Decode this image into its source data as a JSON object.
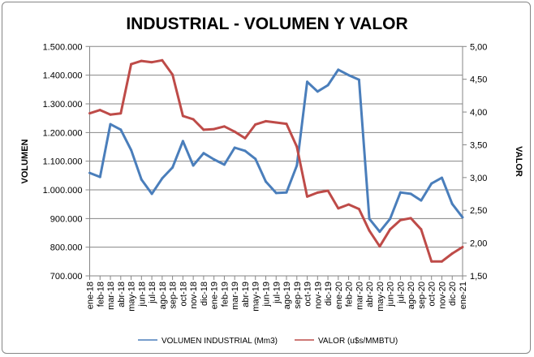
{
  "chart_data": {
    "type": "line",
    "title": "INDUSTRIAL - VOLUMEN Y VALOR",
    "ylabel_left": "VOLUMEN",
    "ylabel_right": "VALOR",
    "ylim_left": [
      700000,
      1500000
    ],
    "ylim_right": [
      1.5,
      5.0
    ],
    "yticks_left": [
      "700.000",
      "800.000",
      "900.000",
      "1.000.000",
      "1.100.000",
      "1.200.000",
      "1.300.000",
      "1.400.000",
      "1.500.000"
    ],
    "yticks_right": [
      "1,50",
      "2,00",
      "2,50",
      "3,00",
      "3,50",
      "4,00",
      "4,50",
      "5,00"
    ],
    "grid": true,
    "legend_position": "bottom",
    "categories": [
      "ene-18",
      "feb-18",
      "mar-18",
      "abr-18",
      "may-18",
      "jun-18",
      "jul-18",
      "ago-18",
      "sep-18",
      "oct-18",
      "nov-18",
      "dic-18",
      "ene-19",
      "feb-19",
      "mar-19",
      "abr-19",
      "may-19",
      "jun-19",
      "jul-19",
      "ago-19",
      "sep-19",
      "oct-19",
      "nov-19",
      "dic-19",
      "ene-20",
      "feb-20",
      "mar-20",
      "abr-20",
      "may-20",
      "jun-20",
      "jul-20",
      "ago-20",
      "sep-20",
      "oct-20",
      "nov-20",
      "dic-20",
      "ene-21"
    ],
    "series": [
      {
        "name": "VOLUMEN INDUSTRIAL (Mm3)",
        "axis": "left",
        "color": "#4A7EBB",
        "values": [
          1059000,
          1045000,
          1229000,
          1210000,
          1139000,
          1036000,
          986000,
          1040000,
          1078000,
          1170000,
          1085000,
          1128000,
          1106000,
          1088000,
          1147000,
          1136000,
          1108000,
          1029000,
          989000,
          991000,
          1085000,
          1377000,
          1343000,
          1365000,
          1419000,
          1400000,
          1384000,
          899000,
          854000,
          899000,
          991000,
          986000,
          963000,
          1022000,
          1042000,
          951000,
          904000
        ]
      },
      {
        "name": "VALOR (u$s/MMBTU)",
        "axis": "right",
        "color": "#BE4B48",
        "values": [
          3.98,
          4.03,
          3.96,
          3.98,
          4.73,
          4.78,
          4.76,
          4.79,
          4.57,
          3.94,
          3.89,
          3.73,
          3.74,
          3.78,
          3.7,
          3.6,
          3.81,
          3.86,
          3.84,
          3.82,
          3.47,
          2.71,
          2.77,
          2.8,
          2.53,
          2.59,
          2.52,
          2.19,
          1.95,
          2.21,
          2.35,
          2.38,
          2.21,
          1.72,
          1.72,
          1.84,
          1.94
        ]
      }
    ]
  }
}
